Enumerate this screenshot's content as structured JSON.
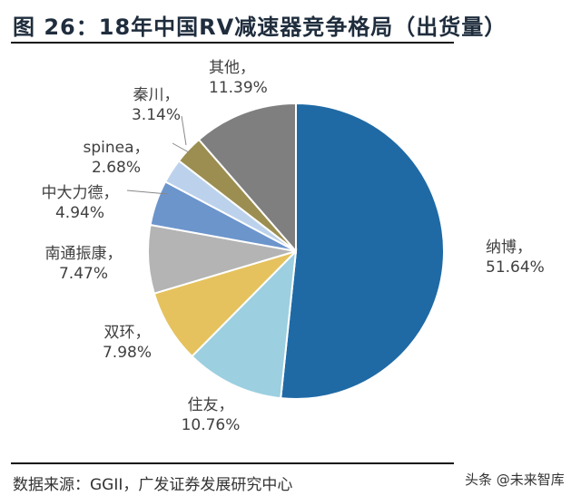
{
  "title": "图 26：18年中国RV减速器竞争格局（出货量）",
  "source": "数据来源：GGII，广发证券发展研究中心",
  "watermark": "头条 @未来智库",
  "chart_data": {
    "type": "pie",
    "title": "图 26：18年中国RV减速器竞争格局（出货量）",
    "start": "top",
    "direction": "clockwise",
    "slices": [
      {
        "name": "纳博",
        "value": 51.64,
        "label": "51.64%",
        "color": "#1f6aa5"
      },
      {
        "name": "住友",
        "value": 10.76,
        "label": "10.76%",
        "color": "#9ccfe0"
      },
      {
        "name": "双环",
        "value": 7.98,
        "label": "7.98%",
        "color": "#e5c25e"
      },
      {
        "name": "南通振康",
        "value": 7.47,
        "label": "7.47%",
        "color": "#b4b4b4"
      },
      {
        "name": "中大力德",
        "value": 4.94,
        "label": "4.94%",
        "color": "#6c95cc"
      },
      {
        "name": "spinea",
        "value": 2.68,
        "label": "2.68%",
        "color": "#bcd2ec"
      },
      {
        "name": "秦川",
        "value": 3.14,
        "label": "3.14%",
        "color": "#9c8e50"
      },
      {
        "name": "其他",
        "value": 11.39,
        "label": "11.39%",
        "color": "#7f7f7f"
      }
    ]
  }
}
